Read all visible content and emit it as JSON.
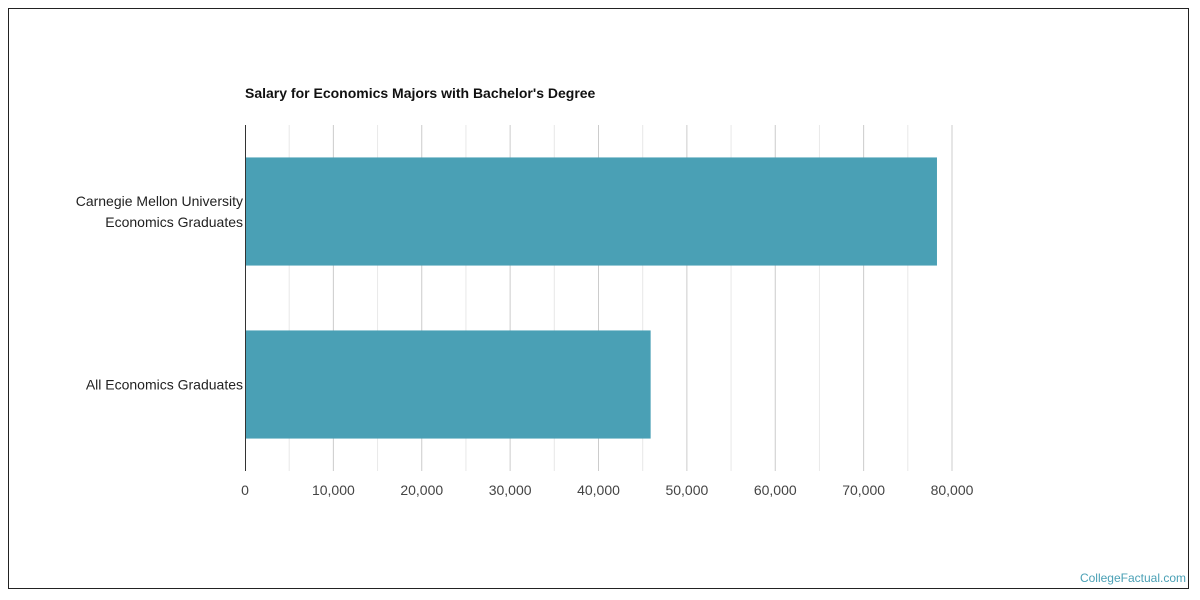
{
  "chart_data": {
    "type": "bar",
    "orientation": "horizontal",
    "title": "Salary for Economics Majors with Bachelor's Degree",
    "categories": [
      [
        "Carnegie Mellon University",
        "Economics Graduates"
      ],
      [
        "All Economics Graduates"
      ]
    ],
    "values": [
      78300,
      45900
    ],
    "xlim": [
      0,
      80000
    ],
    "xticks": [
      0,
      10000,
      20000,
      30000,
      40000,
      50000,
      60000,
      70000,
      80000
    ],
    "xtick_labels": [
      "0",
      "10,000",
      "20,000",
      "30,000",
      "40,000",
      "50,000",
      "60,000",
      "70,000",
      "80,000"
    ],
    "grid": true,
    "colors": {
      "bar": "#4aa0b5",
      "grid_major": "#cccccc",
      "grid_minor": "#e8e8e8",
      "axis": "#333333"
    }
  },
  "footer": {
    "credit": "CollegeFactual.com"
  }
}
